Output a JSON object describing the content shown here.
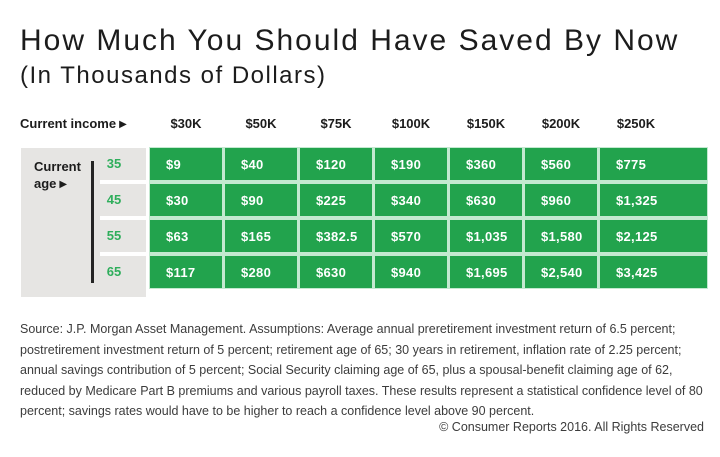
{
  "header": {
    "title": "How Much You Should Have Saved By Now",
    "subtitle": "(In Thousands of Dollars)"
  },
  "icons": {
    "right_arrow": "▶"
  },
  "table": {
    "income_label": "Current income",
    "age_label_line1": "Current",
    "age_label_line2": "age",
    "columns": [
      "$30K",
      "$50K",
      "$75K",
      "$100K",
      "$150K",
      "$200K",
      "$250K"
    ],
    "rows": [
      {
        "age": "35",
        "values": [
          "$9",
          "$40",
          "$120",
          "$190",
          "$360",
          "$560",
          "$775"
        ]
      },
      {
        "age": "45",
        "values": [
          "$30",
          "$90",
          "$225",
          "$340",
          "$630",
          "$960",
          "$1,325"
        ]
      },
      {
        "age": "55",
        "values": [
          "$63",
          "$165",
          "$382.5",
          "$570",
          "$1,035",
          "$1,580",
          "$2,125"
        ]
      },
      {
        "age": "65",
        "values": [
          "$117",
          "$280",
          "$630",
          "$940",
          "$1,695",
          "$2,540",
          "$3,425"
        ]
      }
    ]
  },
  "chart_data": {
    "type": "table",
    "title": "How Much You Should Have Saved By Now",
    "subtitle": "(In Thousands of Dollars)",
    "xlabel": "Current income",
    "ylabel": "Current age",
    "categories": [
      "$30K",
      "$50K",
      "$75K",
      "$100K",
      "$150K",
      "$200K",
      "$250K"
    ],
    "series": [
      {
        "name": "35",
        "values": [
          9,
          40,
          120,
          190,
          360,
          560,
          775
        ]
      },
      {
        "name": "45",
        "values": [
          30,
          90,
          225,
          340,
          630,
          960,
          1325
        ]
      },
      {
        "name": "55",
        "values": [
          63,
          165,
          382.5,
          570,
          1035,
          1580,
          2125
        ]
      },
      {
        "name": "65",
        "values": [
          117,
          280,
          630,
          940,
          1695,
          2540,
          3425
        ]
      }
    ],
    "units": "thousands of dollars",
    "legend_position": "none",
    "grid": false
  },
  "footer": {
    "source": "Source: J.P. Morgan Asset Management. Assumptions: Average annual preretirement investment return of 6.5 percent; postretirement investment return of 5 percent; retirement age of 65; 30 years in retirement, inflation rate of 2.25 percent; annual savings contribution of 5 percent; Social Security claiming age of 65, plus a spousal-benefit claiming age of 62, reduced by Medicare Part B premiums and various payroll taxes. These results represent a statistical confidence level of 80 percent; savings rates would have to be higher to reach a confidence level above 90 percent.",
    "copyright": "© Consumer Reports 2016. All Rights Reserved"
  },
  "colors": {
    "cell_green": "#22A34D",
    "gap_green": "#C3E9D0",
    "age_green": "#2FAE5C",
    "panel_gray": "#E6E5E3",
    "text_dark": "#1C1C1C",
    "footer_gray": "#3C3C3C"
  }
}
